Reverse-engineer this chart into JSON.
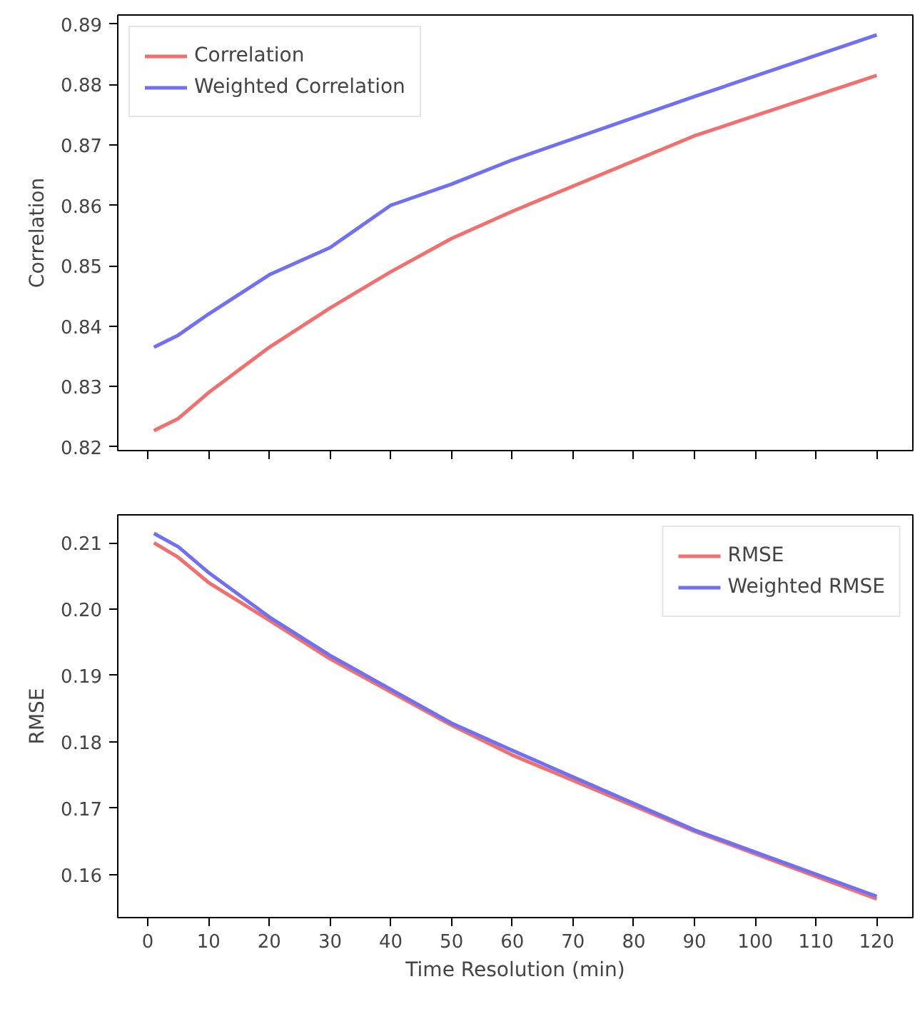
{
  "chart_data": [
    {
      "type": "line",
      "ylabel": "Correlation",
      "x": [
        1,
        5,
        10,
        20,
        30,
        40,
        50,
        60,
        90,
        120
      ],
      "xlim": [
        -4.95,
        125.95
      ],
      "xticks": [
        0,
        10,
        20,
        30,
        40,
        50,
        60,
        70,
        80,
        90,
        100,
        110,
        120
      ],
      "ylim": [
        0.8194,
        0.8915
      ],
      "yticks": [
        0.82,
        0.83,
        0.84,
        0.85,
        0.86,
        0.87,
        0.88,
        0.89
      ],
      "tick_labels": "y",
      "grid": false,
      "legend": "top left",
      "series": [
        {
          "name": "Correlation",
          "color": "#f07070",
          "values": [
            0.8227,
            0.8247,
            0.829,
            0.8365,
            0.843,
            0.849,
            0.8545,
            0.859,
            0.8715,
            0.8815
          ]
        },
        {
          "name": "Weighted Correlation",
          "color": "#7070f0",
          "values": [
            0.8365,
            0.8385,
            0.842,
            0.8485,
            0.853,
            0.86,
            0.8635,
            0.8675,
            0.878,
            0.8882
          ]
        }
      ]
    },
    {
      "type": "line",
      "xlabel": "Time Resolution (min)",
      "ylabel": "RMSE",
      "x": [
        1,
        5,
        10,
        20,
        30,
        40,
        50,
        60,
        90,
        120
      ],
      "xlim": [
        -4.95,
        125.95
      ],
      "xticks": [
        0,
        10,
        20,
        30,
        40,
        50,
        60,
        70,
        80,
        90,
        100,
        110,
        120
      ],
      "ylim": [
        0.1535,
        0.2142
      ],
      "yticks": [
        0.16,
        0.17,
        0.18,
        0.19,
        {
          "value": 0.2,
          "label": "0.20"
        },
        0.21
      ],
      "grid": false,
      "legend": "top right",
      "series": [
        {
          "name": "RMSE",
          "color": "#f07070",
          "values": [
            0.21,
            0.2078,
            0.204,
            0.1983,
            0.1925,
            0.1875,
            0.1825,
            0.178,
            0.1665,
            0.1563
          ]
        },
        {
          "name": "Weighted RMSE",
          "color": "#7070f0",
          "values": [
            0.2114,
            0.2094,
            0.2055,
            0.1988,
            0.193,
            0.1879,
            0.1828,
            0.1787,
            0.1667,
            0.1567
          ]
        }
      ]
    }
  ]
}
